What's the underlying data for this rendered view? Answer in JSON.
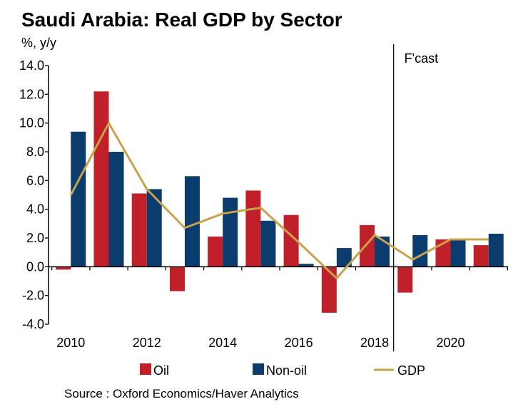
{
  "title": "Saudi Arabia: Real GDP by Sector",
  "source": "Source : Oxford Economics/Haver Analytics",
  "chart_data": {
    "type": "bar",
    "title": "Saudi Arabia: Real GDP by Sector",
    "ylabel": "%, y/y",
    "xlabel": "",
    "ylim": [
      -4.0,
      14.0
    ],
    "yticks": [
      "14.0",
      "12.0",
      "10.0",
      "8.0",
      "6.0",
      "4.0",
      "2.0",
      "0.0",
      "-2.0",
      "-4.0"
    ],
    "ytick_values": [
      14,
      12,
      10,
      8,
      6,
      4,
      2,
      0,
      -2,
      -4
    ],
    "categories": [
      "2010",
      "2011",
      "2012",
      "2013",
      "2014",
      "2015",
      "2016",
      "2017",
      "2018",
      "2019",
      "2020",
      "2021"
    ],
    "xtick_labels": [
      "2010",
      "2012",
      "2014",
      "2016",
      "2018",
      "2020"
    ],
    "forecast_label": "F'cast",
    "forecast_start": "2019",
    "series": [
      {
        "name": "Oil",
        "type": "bar",
        "color": "#C0202A",
        "values": [
          -0.2,
          12.2,
          5.1,
          -1.7,
          2.1,
          5.3,
          3.6,
          -3.2,
          2.9,
          -1.8,
          1.9,
          1.5
        ]
      },
      {
        "name": "Non-oil",
        "type": "bar",
        "color": "#0B3C6E",
        "values": [
          9.4,
          8.0,
          5.4,
          6.3,
          4.8,
          3.2,
          0.2,
          1.3,
          2.1,
          2.2,
          1.9,
          2.3
        ]
      },
      {
        "name": "GDP",
        "type": "line",
        "color": "#C9A14A",
        "values": [
          5.0,
          10.0,
          5.4,
          2.7,
          3.7,
          4.1,
          1.7,
          -0.8,
          2.2,
          0.5,
          1.9,
          1.9
        ]
      }
    ]
  }
}
